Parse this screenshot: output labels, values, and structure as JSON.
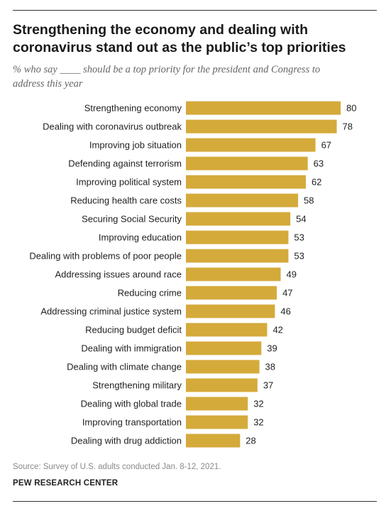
{
  "title_line1": "Strengthening the economy and dealing with",
  "title_line2": "coronavirus stand out as the public’s top priorities",
  "subtitle_line1": "% who say ____ should be a top priority for the president and Congress to",
  "subtitle_line2": "address this year",
  "source": "Source: Survey of U.S. adults conducted Jan. 8-12, 2021.",
  "brand": "PEW RESEARCH CENTER",
  "colors": {
    "bar": "#d4aa3a"
  },
  "chart_data": {
    "type": "bar",
    "orientation": "horizontal",
    "title": "Strengthening the economy and dealing with coronavirus stand out as the public’s top priorities",
    "xlabel": "",
    "ylabel": "",
    "xlim": [
      0,
      80
    ],
    "grid": false,
    "categories": [
      "Strengthening economy",
      "Dealing with coronavirus outbreak",
      "Improving job situation",
      "Defending against terrorism",
      "Improving political system",
      "Reducing health care costs",
      "Securing Social Security",
      "Improving education",
      "Dealing with problems of poor people",
      "Addressing issues around race",
      "Reducing crime",
      "Addressing criminal justice system",
      "Reducing budget deficit",
      "Dealing with immigration",
      "Dealing with climate change",
      "Strengthening military",
      "Dealing with global trade",
      "Improving transportation",
      "Dealing with drug addiction"
    ],
    "values": [
      80,
      78,
      67,
      63,
      62,
      58,
      54,
      53,
      53,
      49,
      47,
      46,
      42,
      39,
      38,
      37,
      32,
      32,
      28
    ]
  }
}
